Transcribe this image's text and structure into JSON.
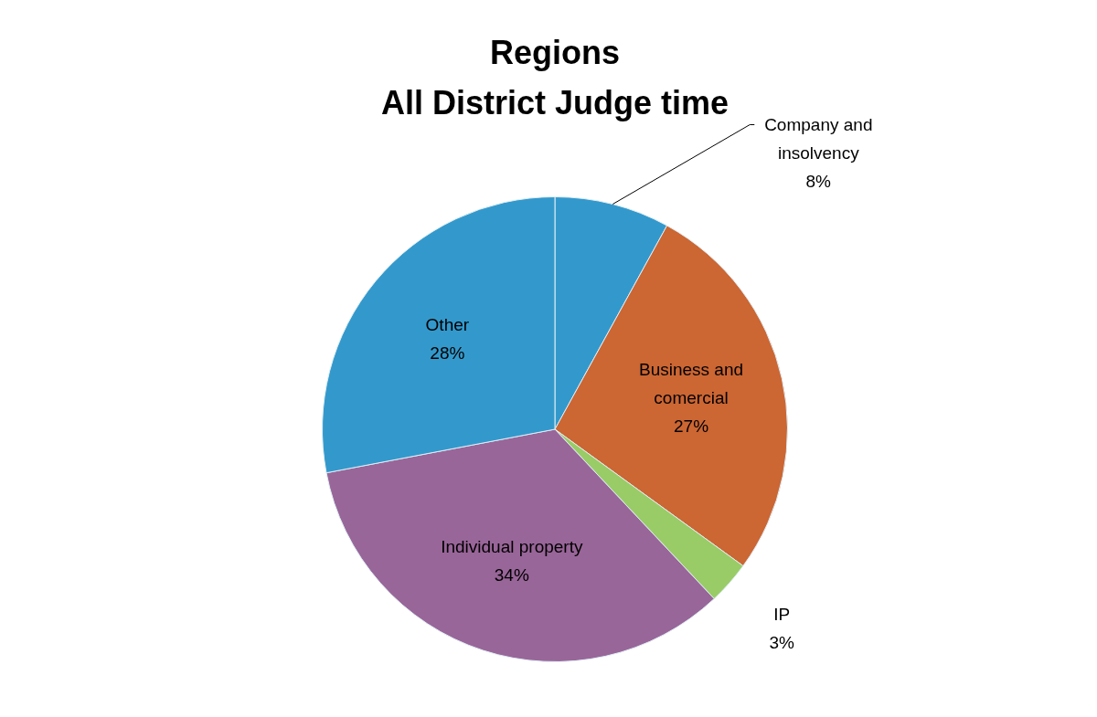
{
  "chart_data": {
    "type": "pie",
    "title": "Regions\nAll District Judge time",
    "categories": [
      "Company and insolvency",
      "Business and comercial",
      "IP",
      "Individual property",
      "Other"
    ],
    "values": [
      8,
      27,
      3,
      34,
      28
    ],
    "value_labels": [
      "8%",
      "27%",
      "3%",
      "34%",
      "28%"
    ],
    "colors": [
      "#3399cc",
      "#cc6633",
      "#99cc66",
      "#996699",
      "#3399cc"
    ],
    "legend": false
  }
}
